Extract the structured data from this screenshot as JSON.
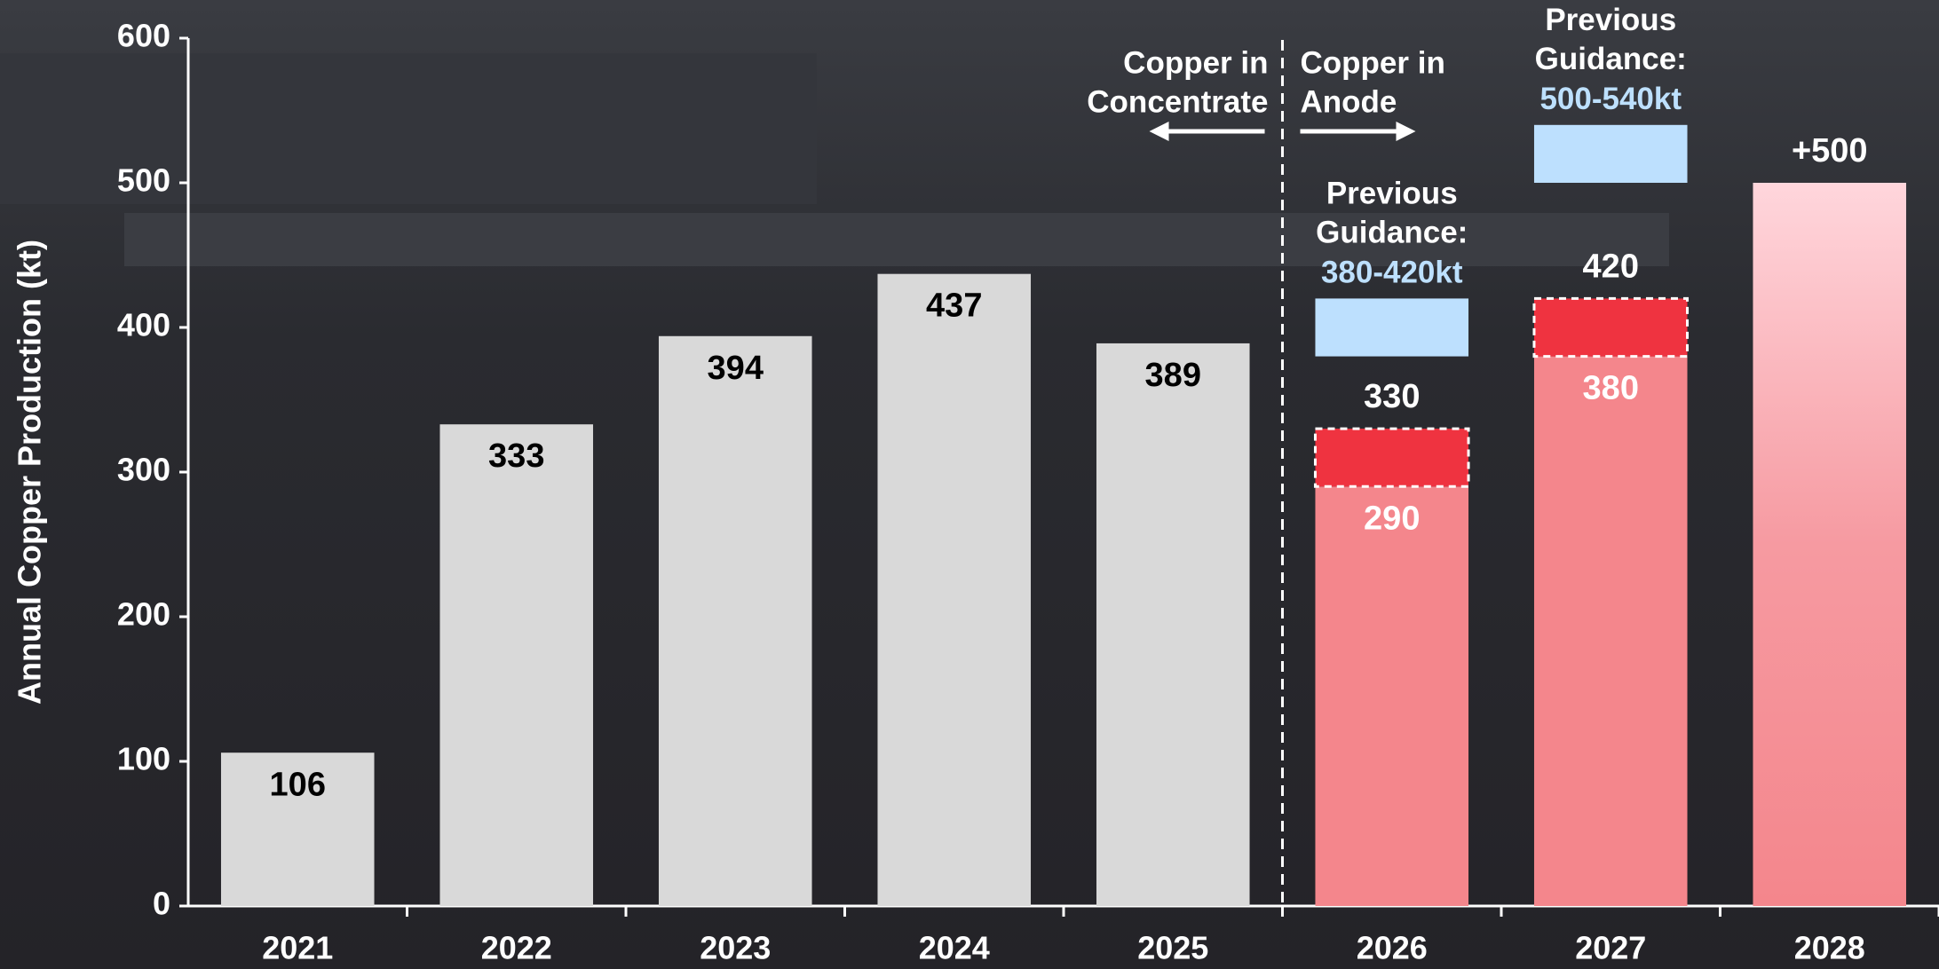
{
  "chart_data": {
    "type": "bar",
    "ylabel": "Annual Copper Production (kt)",
    "categories": [
      "2021",
      "2022",
      "2023",
      "2024",
      "2025",
      "2026",
      "2027",
      "2028"
    ],
    "ylim": [
      0,
      600
    ],
    "yticks": [
      0,
      100,
      200,
      300,
      400,
      500,
      600
    ],
    "series": [
      {
        "name": "Production",
        "values": [
          106,
          333,
          394,
          437,
          389,
          290,
          380,
          500
        ],
        "value_labels": [
          null,
          null,
          null,
          null,
          null,
          null,
          null,
          "+500"
        ],
        "colors": [
          "#d9d9d9",
          "#d9d9d9",
          "#d9d9d9",
          "#d9d9d9",
          "#d9d9d9",
          "#f4868c",
          "#f4868c",
          "#f4868c"
        ]
      },
      {
        "name": "Upper range",
        "values": [
          null,
          null,
          null,
          null,
          null,
          330,
          420,
          null
        ],
        "color": "#ef3340"
      }
    ],
    "guidance": [
      {
        "category": "2026",
        "text": "Previous Guidance:",
        "low": 380,
        "high": 420,
        "label": "380-420kt"
      },
      {
        "category": "2027",
        "text": "Previous Guidance:",
        "low": 500,
        "high": 540,
        "label": "500-540kt"
      }
    ],
    "guidance_color": "#bde0fe",
    "annotations": [
      {
        "lines": [
          "Copper in",
          "Concentrate"
        ],
        "side": "left"
      },
      {
        "lines": [
          "Copper in",
          "Anode"
        ],
        "side": "right"
      }
    ]
  }
}
